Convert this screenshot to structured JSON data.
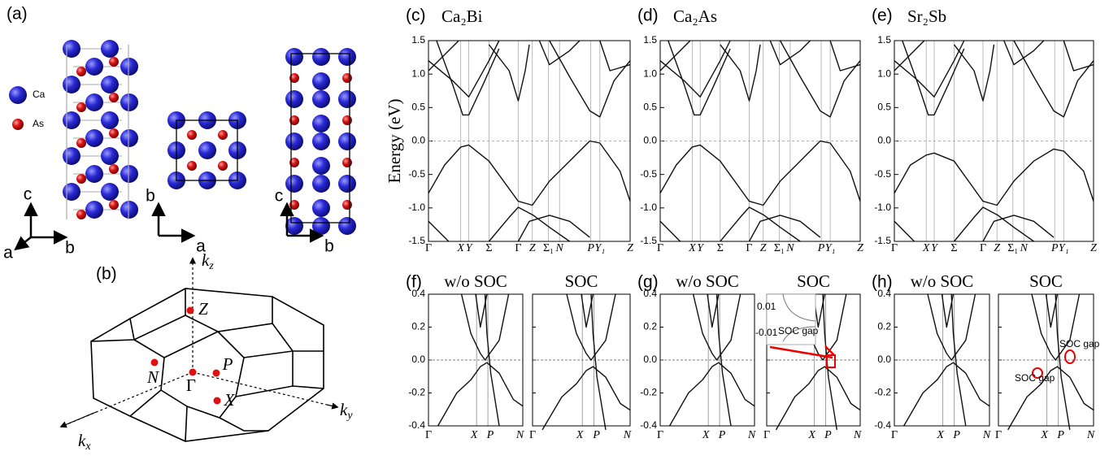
{
  "a": {
    "label": "(a)",
    "legend": [
      {
        "name": "Ca",
        "color": "#2a2ad6"
      },
      {
        "name": "As",
        "color": "#d81414"
      }
    ],
    "axes": [
      [
        "c",
        "a",
        "b"
      ],
      [
        "b",
        "a"
      ],
      [
        "c",
        "b"
      ]
    ]
  },
  "b": {
    "label": "(b)",
    "axes": [
      {
        "base": "k",
        "sub": "z"
      },
      {
        "base": "k",
        "sub": "y"
      },
      {
        "base": "k",
        "sub": "x"
      }
    ],
    "points": [
      "Z",
      "N",
      "Γ",
      "P",
      "X"
    ]
  },
  "bands": [
    {
      "label": "(c)",
      "title": "Ca₂Bi",
      "ylabel": "Energy (eV)",
      "ylim": [
        -1.5,
        1.5
      ],
      "yticks": [
        {
          "value": 1.5,
          "label": "1.5"
        },
        {
          "value": 1,
          "label": "1.0"
        },
        {
          "value": 0.5,
          "label": "0.5"
        },
        {
          "value": 0,
          "label": "0.0"
        },
        {
          "value": -0.5,
          "label": "-0.5"
        },
        {
          "value": -1,
          "label": "-1.0"
        },
        {
          "value": -1.5,
          "label": "-1.5"
        }
      ],
      "kpoints": [
        "Γ",
        "X",
        "Y",
        "Σ",
        "Γ",
        "Z",
        "Σ₁",
        "N",
        "P",
        "Y₁",
        "Z"
      ]
    },
    {
      "label": "(d)",
      "title": "Ca₂As",
      "ylim": [
        -1.5,
        1.5
      ],
      "yticks": [
        {
          "value": 1.5,
          "label": "1.5"
        },
        {
          "value": 1,
          "label": "1.0"
        },
        {
          "value": 0.5,
          "label": "0.5"
        },
        {
          "value": 0,
          "label": "0.0"
        },
        {
          "value": -0.5,
          "label": "-0.5"
        },
        {
          "value": -1,
          "label": "-1.0"
        },
        {
          "value": -1.5,
          "label": "-1.5"
        }
      ],
      "kpoints": [
        "Γ",
        "X",
        "Y",
        "Σ",
        "Γ",
        "Z",
        "Σ₁",
        "N",
        "P",
        "Y₁",
        "Z"
      ]
    },
    {
      "label": "(e)",
      "title": "Sr₂Sb",
      "ylim": [
        -1.5,
        1.5
      ],
      "yticks": [
        {
          "value": 1.5,
          "label": "1.5"
        },
        {
          "value": 1,
          "label": "1.0"
        },
        {
          "value": 0.5,
          "label": "0.5"
        },
        {
          "value": 0,
          "label": "0.0"
        },
        {
          "value": -0.5,
          "label": "-0.5"
        },
        {
          "value": -1,
          "label": "-1.0"
        },
        {
          "value": -1.5,
          "label": "-1.5"
        }
      ],
      "kpoints": [
        "Γ",
        "X",
        "Y",
        "Σ",
        "Γ",
        "Z",
        "Σ₁",
        "N",
        "P",
        "Y₁",
        "Z"
      ]
    }
  ],
  "zooms": [
    {
      "label": "(f)",
      "ylim": [
        -0.4,
        0.4
      ],
      "yticks": [
        0.4,
        0.2,
        {
          "value": 0,
          "label": "0.0"
        },
        -0.2,
        -0.4
      ],
      "subplots": [
        {
          "title": "w/o SOC",
          "kpoints": [
            "Γ",
            "X",
            "P",
            "N"
          ]
        },
        {
          "title": "SOC",
          "kpoints": [
            "Γ",
            "X",
            "P",
            "N"
          ]
        }
      ],
      "annotations": []
    },
    {
      "label": "(g)",
      "ylim": [
        -0.4,
        0.4
      ],
      "yticks": [
        0.4,
        0.2,
        {
          "value": 0,
          "label": "0.0"
        },
        -0.2,
        -0.4
      ],
      "subplots": [
        {
          "title": "w/o SOC",
          "kpoints": [
            "Γ",
            "X",
            "P",
            "N"
          ]
        },
        {
          "title": "SOC",
          "kpoints": [
            "Γ",
            "X",
            "P",
            "N"
          ]
        }
      ],
      "annotations": [
        "0.01",
        "-0.01",
        "SOC gap"
      ]
    },
    {
      "label": "(h)",
      "ylim": [
        -0.4,
        0.4
      ],
      "yticks": [
        0.4,
        0.2,
        {
          "value": 0,
          "label": "0.0"
        },
        -0.2,
        -0.4
      ],
      "subplots": [
        {
          "title": "w/o SOC",
          "kpoints": [
            "Γ",
            "X",
            "P",
            "N"
          ]
        },
        {
          "title": "SOC",
          "kpoints": [
            "Γ",
            "X",
            "P",
            "N"
          ]
        }
      ],
      "annotations": [
        "SOC gap",
        "SOC gap"
      ]
    }
  ]
}
